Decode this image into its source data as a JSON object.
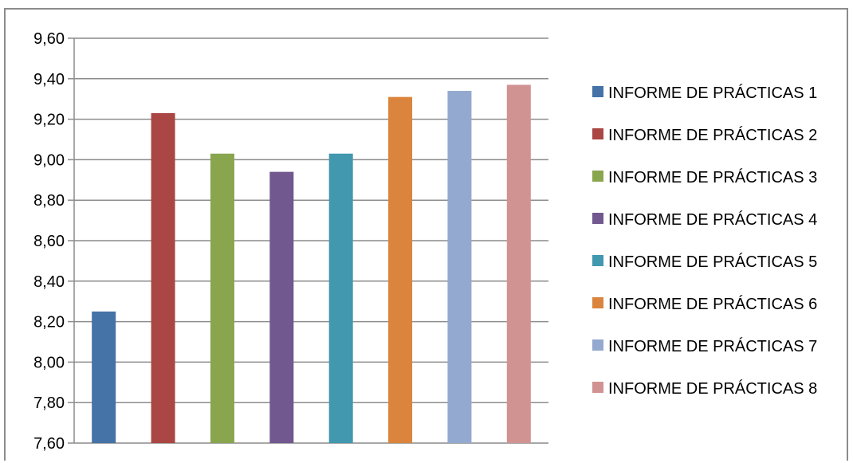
{
  "chart_data": {
    "type": "bar",
    "title": "",
    "xlabel": "",
    "ylabel": "",
    "ylim": [
      7.6,
      9.6
    ],
    "yticks": [
      "9,60",
      "9,40",
      "9,20",
      "9,00",
      "8,80",
      "8,60",
      "8,40",
      "8,20",
      "8,00",
      "7,80",
      "7,60"
    ],
    "ytick_values": [
      9.6,
      9.4,
      9.2,
      9.0,
      8.8,
      8.6,
      8.4,
      8.2,
      8.0,
      7.8,
      7.6
    ],
    "grid": true,
    "legend_position": "right",
    "series": [
      {
        "name": "INFORME DE PRÁCTICAS 1",
        "value": 8.25,
        "color": "#4572A7"
      },
      {
        "name": "INFORME DE PRÁCTICAS 2",
        "value": 9.23,
        "color": "#AA4643"
      },
      {
        "name": "INFORME DE PRÁCTICAS 3",
        "value": 9.03,
        "color": "#89A54E"
      },
      {
        "name": "INFORME DE PRÁCTICAS 4",
        "value": 8.94,
        "color": "#71588F"
      },
      {
        "name": "INFORME DE PRÁCTICAS 5",
        "value": 9.03,
        "color": "#4198AF"
      },
      {
        "name": "INFORME DE PRÁCTICAS 6",
        "value": 9.31,
        "color": "#DB843D"
      },
      {
        "name": "INFORME DE PRÁCTICAS 7",
        "value": 9.34,
        "color": "#93A9CF"
      },
      {
        "name": "INFORME DE PRÁCTICAS 8",
        "value": 9.37,
        "color": "#D19392"
      }
    ]
  }
}
